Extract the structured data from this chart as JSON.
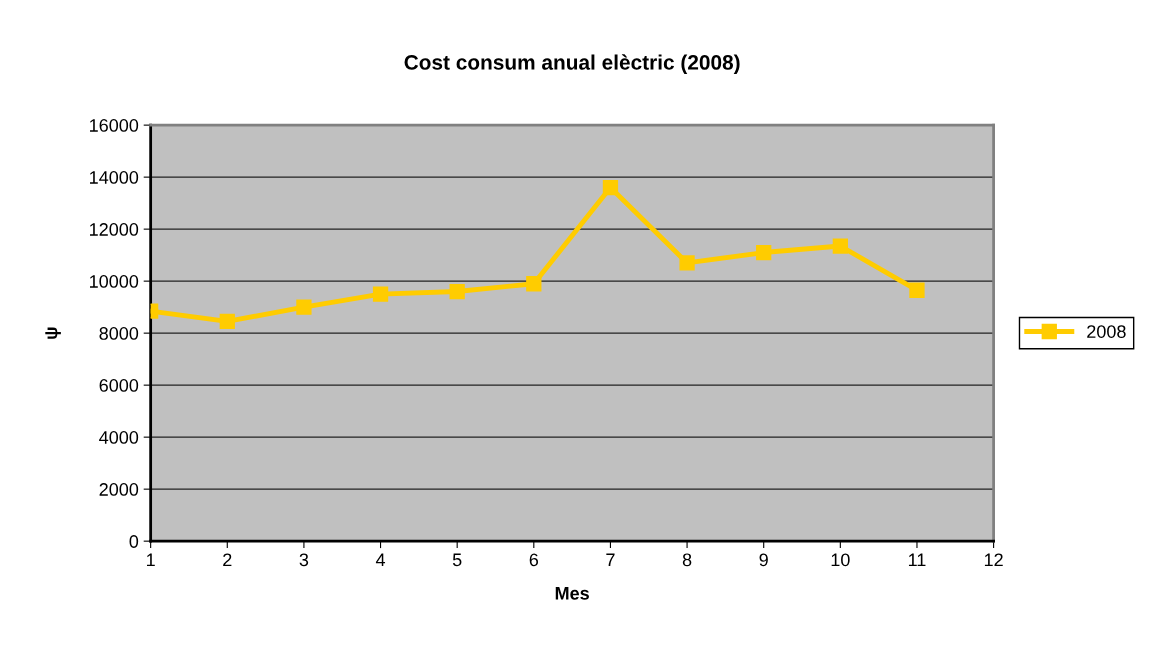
{
  "chart_data": {
    "type": "line",
    "title": "Cost consum anual elèctric (2008)",
    "xlabel": "Mes",
    "ylabel": "ψ",
    "x": [
      1,
      2,
      3,
      4,
      5,
      6,
      7,
      8,
      9,
      10,
      11
    ],
    "series": [
      {
        "name": "2008",
        "color": "#ffcc00",
        "values": [
          8850,
          8450,
          9000,
          9500,
          9600,
          9900,
          13600,
          10700,
          11100,
          11350,
          9650
        ]
      }
    ],
    "xlim": [
      1,
      12
    ],
    "xticks": [
      1,
      2,
      3,
      4,
      5,
      6,
      7,
      8,
      9,
      10,
      11,
      12
    ],
    "ylim": [
      0,
      16000
    ],
    "yticks": [
      0,
      2000,
      4000,
      6000,
      8000,
      10000,
      12000,
      14000,
      16000
    ],
    "grid": "y",
    "legend": "right",
    "marker": "square",
    "line_style": "solid"
  }
}
